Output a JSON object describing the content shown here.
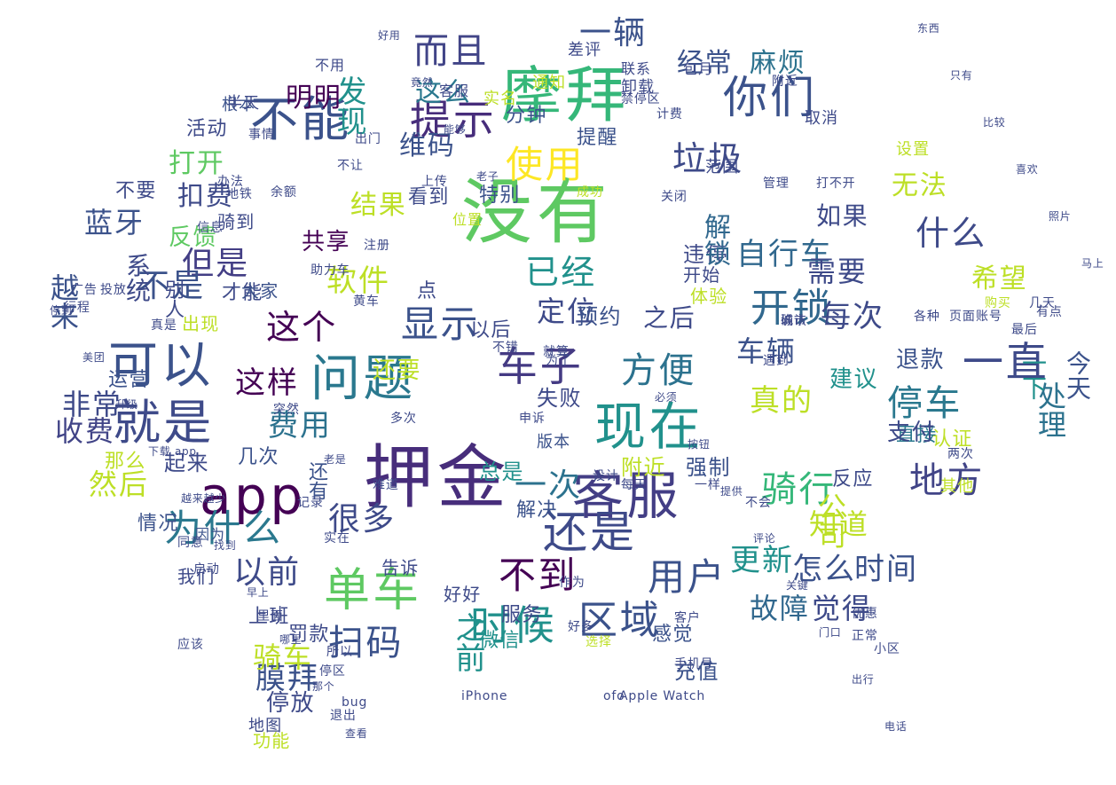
{
  "word_cloud": {
    "words": [
      {
        "text": "押金",
        "color": "#472d7b"
      },
      {
        "text": "没有",
        "color": "#5ec962"
      },
      {
        "text": "摩拜",
        "color": "#35b779"
      },
      {
        "text": "app",
        "color": "#440154"
      },
      {
        "text": "不能",
        "color": "#3b528b"
      },
      {
        "text": "可以",
        "color": "#3b528b"
      },
      {
        "text": "就是",
        "color": "#3e4a89"
      },
      {
        "text": "问题",
        "color": "#2a788e"
      },
      {
        "text": "现在",
        "color": "#21918c"
      },
      {
        "text": "客服",
        "color": "#433e85"
      },
      {
        "text": "单车",
        "color": "#5ec962"
      },
      {
        "text": "还是",
        "color": "#3e4a89"
      },
      {
        "text": "你们",
        "color": "#3b528b"
      },
      {
        "text": "一直",
        "color": "#3e4a89"
      },
      {
        "text": "车子",
        "color": "#443a83"
      },
      {
        "text": "方便",
        "color": "#2c728e"
      },
      {
        "text": "使用",
        "color": "#fde725"
      },
      {
        "text": "显示",
        "color": "#3b528b"
      },
      {
        "text": "提示",
        "color": "#472d7b"
      },
      {
        "text": "垃圾",
        "color": "#3e4a89"
      },
      {
        "text": "开锁",
        "color": "#31688e"
      },
      {
        "text": "时候",
        "color": "#21918c"
      },
      {
        "text": "区域",
        "color": "#3b528b"
      },
      {
        "text": "停车",
        "color": "#2a788e"
      },
      {
        "text": "地方",
        "color": "#414487"
      },
      {
        "text": "什么",
        "color": "#3e4a89"
      },
      {
        "text": "为什么",
        "color": "#2a788e"
      },
      {
        "text": "不到",
        "color": "#440154"
      },
      {
        "text": "用户",
        "color": "#3b528b"
      },
      {
        "text": "扫码",
        "color": "#3b528b"
      },
      {
        "text": "骑行",
        "color": "#35b779"
      },
      {
        "text": "经常",
        "color": "#3b528b"
      },
      {
        "text": "麻烦",
        "color": "#2c728e"
      },
      {
        "text": "一辆",
        "color": "#3b528b"
      },
      {
        "text": "而且",
        "color": "#414487"
      },
      {
        "text": "这么",
        "color": "#2a788e"
      },
      {
        "text": "发现",
        "color": "#21918c"
      },
      {
        "text": "明明",
        "color": "#440154"
      },
      {
        "text": "蓝牙",
        "color": "#3b528b"
      },
      {
        "text": "打开",
        "color": "#5ec962"
      },
      {
        "text": "扣费",
        "color": "#3e4a89"
      },
      {
        "text": "结果",
        "color": "#bddf26"
      },
      {
        "text": "软件",
        "color": "#bddf26"
      },
      {
        "text": "已经",
        "color": "#21918c"
      },
      {
        "text": "这个",
        "color": "#440154"
      },
      {
        "text": "但是",
        "color": "#433e85"
      },
      {
        "text": "不是",
        "color": "#3b528b"
      },
      {
        "text": "收费",
        "color": "#414487"
      },
      {
        "text": "然后",
        "color": "#bddf26"
      },
      {
        "text": "很多",
        "color": "#3e4a89"
      },
      {
        "text": "以前",
        "color": "#3e4a89"
      },
      {
        "text": "膜拜",
        "color": "#3b528b"
      },
      {
        "text": "骑车",
        "color": "#bddf26"
      },
      {
        "text": "之前",
        "color": "#21918c"
      },
      {
        "text": "一次",
        "color": "#2c728e"
      },
      {
        "text": "更新",
        "color": "#21918c"
      },
      {
        "text": "怎么",
        "color": "#3b528b"
      },
      {
        "text": "时间",
        "color": "#3b528b"
      },
      {
        "text": "故障",
        "color": "#31688e"
      },
      {
        "text": "觉得",
        "color": "#3e4a89"
      },
      {
        "text": "知道",
        "color": "#bddf26"
      },
      {
        "text": "真的",
        "color": "#bddf26"
      },
      {
        "text": "自行车",
        "color": "#31688e"
      },
      {
        "text": "希望",
        "color": "#bddf26"
      },
      {
        "text": "需要",
        "color": "#3e4a89"
      },
      {
        "text": "每次",
        "color": "#3e4a89"
      },
      {
        "text": "车辆",
        "color": "#3b528b"
      },
      {
        "text": "定位",
        "color": "#3e4a89"
      },
      {
        "text": "维码",
        "color": "#3b528b"
      },
      {
        "text": "无法",
        "color": "#bddf26"
      },
      {
        "text": "认证",
        "color": "#bddf26"
      },
      {
        "text": "直接",
        "color": "#2a788e"
      },
      {
        "text": "公司",
        "color": "#bddf26"
      },
      {
        "text": "处理",
        "color": "#2c728e"
      },
      {
        "text": "一下",
        "color": "#21918c"
      },
      {
        "text": "今天",
        "color": "#3b528b"
      },
      {
        "text": "非常",
        "color": "#3e4a89"
      },
      {
        "text": "越来",
        "color": "#3b528b"
      },
      {
        "text": "系统",
        "color": "#3e4a89"
      },
      {
        "text": "反馈",
        "color": "#5ec962"
      },
      {
        "text": "共享",
        "color": "#440154"
      },
      {
        "text": "违停",
        "color": "#3e4a89"
      },
      {
        "text": "预约",
        "color": "#3b528b"
      },
      {
        "text": "之后",
        "color": "#3e4a89"
      },
      {
        "text": "解锁",
        "color": "#31688e"
      },
      {
        "text": "如果",
        "color": "#3e4a89"
      },
      {
        "text": "建议",
        "color": "#21918c"
      },
      {
        "text": "退款",
        "color": "#3b528b"
      },
      {
        "text": "支付",
        "color": "#3e4a89"
      },
      {
        "text": "总是",
        "color": "#21918c"
      },
      {
        "text": "附近",
        "color": "#bddf26"
      },
      {
        "text": "强制",
        "color": "#3b528b"
      },
      {
        "text": "反应",
        "color": "#3e4a89"
      },
      {
        "text": "其他",
        "color": "#bddf26"
      },
      {
        "text": "费用",
        "color": "#2c728e"
      },
      {
        "text": "这样",
        "color": "#440154"
      },
      {
        "text": "还要",
        "color": "#bddf26"
      },
      {
        "text": "还有",
        "color": "#3b528b"
      },
      {
        "text": "分钟",
        "color": "#3b528b"
      },
      {
        "text": "看到",
        "color": "#3e4a89"
      },
      {
        "text": "特别",
        "color": "#3b528b"
      },
      {
        "text": "提醒",
        "color": "#3b528b"
      },
      {
        "text": "失败",
        "color": "#3e4a89"
      },
      {
        "text": "解决",
        "color": "#3b528b"
      },
      {
        "text": "情况",
        "color": "#3b528b"
      },
      {
        "text": "我们",
        "color": "#3e4a89"
      },
      {
        "text": "告诉",
        "color": "#3e4a89"
      },
      {
        "text": "好好",
        "color": "#3e4a89"
      },
      {
        "text": "服务",
        "color": "#3e4a89"
      },
      {
        "text": "微信",
        "color": "#21918c"
      },
      {
        "text": "停放",
        "color": "#3e4a89"
      },
      {
        "text": "充值",
        "color": "#3b528b"
      },
      {
        "text": "感觉",
        "color": "#3b528b"
      },
      {
        "text": "上班",
        "color": "#3e4a89"
      },
      {
        "text": "功能",
        "color": "#bddf26"
      },
      {
        "text": "地图",
        "color": "#3e4a89"
      },
      {
        "text": "罚款",
        "color": "#3e4a89"
      },
      {
        "text": "起来",
        "color": "#3e4a89"
      },
      {
        "text": "几次",
        "color": "#3b528b"
      },
      {
        "text": "那么",
        "color": "#bddf26"
      },
      {
        "text": "运营",
        "color": "#3b528b"
      },
      {
        "text": "活动",
        "color": "#3e4a89"
      },
      {
        "text": "根本",
        "color": "#3b528b"
      },
      {
        "text": "不用",
        "color": "#3e4a89"
      },
      {
        "text": "实名",
        "color": "#bddf26"
      },
      {
        "text": "差评",
        "color": "#3e4a89"
      },
      {
        "text": "通知",
        "color": "#bddf26"
      },
      {
        "text": "卸载",
        "color": "#3e4a89"
      },
      {
        "text": "取消",
        "color": "#3e4a89"
      },
      {
        "text": "范围",
        "color": "#3e4a89"
      },
      {
        "text": "设置",
        "color": "#bddf26"
      },
      {
        "text": "不要",
        "color": "#3e4a89"
      },
      {
        "text": "骑到",
        "color": "#3e4a89"
      },
      {
        "text": "才能",
        "color": "#3e4a89"
      },
      {
        "text": "大家",
        "color": "#3b528b"
      },
      {
        "text": "点",
        "color": "#3e4a89"
      },
      {
        "text": "以后",
        "color": "#3e4a89"
      },
      {
        "text": "体验",
        "color": "#bddf26"
      },
      {
        "text": "开始",
        "color": "#3e4a89"
      },
      {
        "text": "出现",
        "color": "#bddf26"
      },
      {
        "text": "别人",
        "color": "#3e4a89"
      },
      {
        "text": "位置",
        "color": "#bddf26"
      },
      {
        "text": "版本",
        "color": "#3b528b"
      },
      {
        "text": "因为",
        "color": "#3b528b"
      },
      {
        "text": "成功",
        "color": "#bddf26"
      },
      {
        "text": "打不开",
        "color": "#3e4a89"
      },
      {
        "text": "选择",
        "color": "#bddf26"
      },
      {
        "text": "手机号",
        "color": "#3e4a89"
      },
      {
        "text": "优惠",
        "color": "#3e4a89"
      },
      {
        "text": "正常",
        "color": "#3e4a89"
      },
      {
        "text": "小区",
        "color": "#3e4a89"
      },
      {
        "text": "应该",
        "color": "#3e4a89"
      },
      {
        "text": "同意",
        "color": "#3e4a89"
      },
      {
        "text": "购买",
        "color": "#bddf26"
      },
      {
        "text": "账号",
        "color": "#3e4a89"
      },
      {
        "text": "最后",
        "color": "#3e4a89"
      },
      {
        "text": "页面",
        "color": "#3e4a89"
      },
      {
        "text": "各种",
        "color": "#3e4a89"
      },
      {
        "text": "确认",
        "color": "#3e4a89"
      },
      {
        "text": "关闭",
        "color": "#3e4a89"
      },
      {
        "text": "注册",
        "color": "#3e4a89"
      },
      {
        "text": "管理",
        "color": "#3e4a89"
      },
      {
        "text": "办法",
        "color": "#3e4a89"
      },
      {
        "text": "地铁",
        "color": "#3e4a89"
      },
      {
        "text": "助力车",
        "color": "#3e4a89"
      },
      {
        "text": "多次",
        "color": "#3e4a89"
      },
      {
        "text": "好多",
        "color": "#3e4a89"
      },
      {
        "text": "作为",
        "color": "#3e4a89"
      },
      {
        "text": "客户",
        "color": "#3e4a89"
      },
      {
        "text": "城市",
        "color": "#3e4a89"
      },
      {
        "text": "遇到",
        "color": "#3e4a89"
      },
      {
        "text": "两次",
        "color": "#3e4a89"
      },
      {
        "text": "有点",
        "color": "#3e4a89"
      },
      {
        "text": "几天",
        "color": "#3e4a89"
      },
      {
        "text": "半天",
        "color": "#3e4a89"
      },
      {
        "text": "不让",
        "color": "#3e4a89"
      },
      {
        "text": "老是",
        "color": "#3e4a89"
      },
      {
        "text": "计费",
        "color": "#3e4a89"
      },
      {
        "text": "事情",
        "color": "#3e4a89"
      },
      {
        "text": "信息",
        "color": "#3e4a89"
      },
      {
        "text": "投放",
        "color": "#3e4a89"
      },
      {
        "text": "广告",
        "color": "#3e4a89"
      },
      {
        "text": "行程",
        "color": "#3e4a89"
      },
      {
        "text": "实在",
        "color": "#3e4a89"
      },
      {
        "text": "记录",
        "color": "#3e4a89"
      },
      {
        "text": "突然",
        "color": "#3e4a89"
      },
      {
        "text": "真是",
        "color": "#3e4a89"
      },
      {
        "text": "黄车",
        "color": "#3e4a89"
      },
      {
        "text": "不会",
        "color": "#3e4a89"
      },
      {
        "text": "不错",
        "color": "#3e4a89"
      },
      {
        "text": "为了",
        "color": "#3e4a89"
      },
      {
        "text": "就算",
        "color": "#3e4a89"
      },
      {
        "text": "申诉",
        "color": "#3e4a89"
      },
      {
        "text": "设计",
        "color": "#3e4a89"
      },
      {
        "text": "每天",
        "color": "#3e4a89"
      },
      {
        "text": "一样",
        "color": "#3e4a89"
      },
      {
        "text": "ofo",
        "color": "#3e4a89"
      },
      {
        "text": "Apple Watch",
        "color": "#3e4a89"
      },
      {
        "text": "iPhone",
        "color": "#3e4a89"
      },
      {
        "text": "bug",
        "color": "#3e4a89"
      },
      {
        "text": "停区",
        "color": "#3e4a89"
      },
      {
        "text": "退出",
        "color": "#3e4a89"
      },
      {
        "text": "余额",
        "color": "#3e4a89"
      },
      {
        "text": "难道",
        "color": "#3e4a89"
      },
      {
        "text": "客服",
        "color": "#3e4a89"
      },
      {
        "text": "联系",
        "color": "#3e4a89"
      },
      {
        "text": "包月",
        "color": "#3e4a89"
      },
      {
        "text": "附近",
        "color": "#3e4a89"
      },
      {
        "text": "禁停区",
        "color": "#3e4a89"
      },
      {
        "text": "出门",
        "color": "#3e4a89"
      },
      {
        "text": "上传",
        "color": "#3e4a89"
      },
      {
        "text": "启动",
        "color": "#3e4a89"
      },
      {
        "text": "里面",
        "color": "#3e4a89"
      },
      {
        "text": "所以",
        "color": "#3e4a89"
      },
      {
        "text": "必须",
        "color": "#3e4a89"
      },
      {
        "text": "按钮",
        "color": "#3e4a89"
      },
      {
        "text": "提供",
        "color": "#3e4a89"
      },
      {
        "text": "评论",
        "color": "#3e4a89"
      },
      {
        "text": "关键",
        "color": "#3e4a89"
      },
      {
        "text": "门口",
        "color": "#3e4a89"
      },
      {
        "text": "出行",
        "color": "#3e4a89"
      },
      {
        "text": "电话",
        "color": "#3e4a89"
      },
      {
        "text": "东西",
        "color": "#3e4a89"
      },
      {
        "text": "只有",
        "color": "#3e4a89"
      },
      {
        "text": "比较",
        "color": "#3e4a89"
      },
      {
        "text": "喜欢",
        "color": "#3e4a89"
      },
      {
        "text": "照片",
        "color": "#3e4a89"
      },
      {
        "text": "马上",
        "color": "#3e4a89"
      },
      {
        "text": "停到",
        "color": "#3e4a89"
      },
      {
        "text": "美团",
        "color": "#3e4a89"
      },
      {
        "text": "升级",
        "color": "#3e4a89"
      },
      {
        "text": "下载 app",
        "color": "#3e4a89"
      },
      {
        "text": "越来越少",
        "color": "#3e4a89"
      },
      {
        "text": "找到",
        "color": "#3e4a89"
      },
      {
        "text": "早上",
        "color": "#3e4a89"
      },
      {
        "text": "哪里",
        "color": "#3e4a89"
      },
      {
        "text": "那个",
        "color": "#3e4a89"
      },
      {
        "text": "查看",
        "color": "#3e4a89"
      },
      {
        "text": "好用",
        "color": "#3e4a89"
      },
      {
        "text": "竟然",
        "color": "#3e4a89"
      },
      {
        "text": "能够",
        "color": "#3e4a89"
      },
      {
        "text": "老子",
        "color": "#3e4a89"
      }
    ]
  }
}
